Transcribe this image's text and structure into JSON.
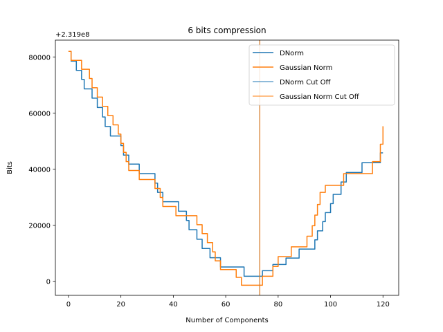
{
  "chart_data": {
    "type": "line",
    "title": "6 bits compression",
    "xlabel": "Number of Components",
    "ylabel": "Bits",
    "offset_label": "+2.319e8",
    "xlim": [
      -5,
      126
    ],
    "ylim": [
      -5000,
      86000
    ],
    "xticks": [
      0,
      20,
      40,
      60,
      80,
      100,
      120
    ],
    "yticks": [
      0,
      20000,
      40000,
      60000,
      80000
    ],
    "legend_position": "upper right",
    "series": [
      {
        "name": "DNorm",
        "color": "#1f77b4",
        "step": true,
        "x": [
          0,
          1,
          2,
          3,
          4,
          5,
          6,
          7,
          8,
          9,
          10,
          11,
          12,
          13,
          14,
          15,
          16,
          17,
          18,
          19,
          20,
          21,
          22,
          23,
          24,
          25,
          26,
          27,
          28,
          29,
          30,
          31,
          32,
          33,
          34,
          35,
          36,
          37,
          38,
          39,
          40,
          41,
          42,
          43,
          44,
          45,
          46,
          47,
          48,
          49,
          50,
          51,
          52,
          53,
          54,
          55,
          56,
          57,
          58,
          59,
          60,
          61,
          62,
          63,
          64,
          65,
          66,
          67,
          68,
          69,
          70,
          71,
          72,
          73,
          74,
          75,
          76,
          77,
          78,
          79,
          80,
          81,
          82,
          83,
          84,
          85,
          86,
          87,
          88,
          89,
          90,
          91,
          92,
          93,
          94,
          95,
          96,
          97,
          98,
          99,
          100,
          101,
          102,
          103,
          104,
          105,
          106,
          107,
          108,
          109,
          110,
          111,
          112,
          113,
          114,
          115,
          116,
          117,
          118,
          119,
          120
        ],
        "y": [
          82000,
          78500,
          78500,
          75200,
          75200,
          72000,
          68600,
          68600,
          68600,
          65300,
          65300,
          62000,
          62000,
          58600,
          55200,
          55200,
          51800,
          51800,
          51800,
          51800,
          48400,
          45000,
          45000,
          41800,
          41800,
          41800,
          41800,
          38400,
          38400,
          38400,
          38400,
          38400,
          38400,
          35000,
          31700,
          31700,
          28400,
          28400,
          28400,
          28400,
          28400,
          28400,
          25000,
          25000,
          25000,
          21700,
          18400,
          18400,
          18400,
          15000,
          15000,
          11700,
          11700,
          11700,
          8400,
          8400,
          8400,
          8400,
          5100,
          5100,
          5100,
          5100,
          5100,
          5100,
          5100,
          5100,
          5100,
          1800,
          1800,
          1800,
          1800,
          1800,
          1800,
          1800,
          3800,
          3800,
          3800,
          3800,
          6000,
          6000,
          6000,
          6000,
          6000,
          8300,
          8300,
          8300,
          8300,
          8300,
          11500,
          11500,
          11500,
          11500,
          11500,
          11500,
          14800,
          18000,
          18000,
          21300,
          24500,
          24500,
          27700,
          31000,
          31000,
          31000,
          35400,
          35400,
          38800,
          38800,
          38800,
          38800,
          38800,
          38800,
          42300,
          42300,
          42300,
          42300,
          42300,
          42300,
          42300,
          45800,
          45800
        ]
      },
      {
        "name": "Gaussian Norm",
        "color": "#ff7f0e",
        "step": true,
        "x": [
          0,
          1,
          2,
          3,
          4,
          5,
          6,
          7,
          8,
          9,
          10,
          11,
          12,
          13,
          14,
          15,
          16,
          17,
          18,
          19,
          20,
          21,
          22,
          23,
          24,
          25,
          26,
          27,
          28,
          29,
          30,
          31,
          32,
          33,
          34,
          35,
          36,
          37,
          38,
          39,
          40,
          41,
          42,
          43,
          44,
          45,
          46,
          47,
          48,
          49,
          50,
          51,
          52,
          53,
          54,
          55,
          56,
          57,
          58,
          59,
          60,
          61,
          62,
          63,
          64,
          65,
          66,
          67,
          68,
          69,
          70,
          71,
          72,
          73,
          74,
          75,
          76,
          77,
          78,
          79,
          80,
          81,
          82,
          83,
          84,
          85,
          86,
          87,
          88,
          89,
          90,
          91,
          92,
          93,
          94,
          95,
          96,
          97,
          98,
          99,
          100,
          101,
          102,
          103,
          104,
          105,
          106,
          107,
          108,
          109,
          110,
          111,
          112,
          113,
          114,
          115,
          116,
          117,
          118,
          119,
          120
        ],
        "y": [
          82000,
          78800,
          78800,
          78800,
          78800,
          75600,
          75600,
          75600,
          72300,
          69000,
          69000,
          65700,
          65700,
          62400,
          62400,
          59100,
          59100,
          55800,
          55800,
          52500,
          49200,
          46000,
          42700,
          39500,
          39500,
          39500,
          39500,
          36300,
          36300,
          36300,
          36300,
          36300,
          36300,
          33100,
          33100,
          29900,
          26700,
          26700,
          26700,
          26700,
          26700,
          23400,
          23400,
          23400,
          23400,
          23400,
          23400,
          23400,
          23400,
          20200,
          20200,
          17000,
          17000,
          13800,
          13800,
          10500,
          7300,
          7300,
          4200,
          4200,
          4200,
          4200,
          4200,
          4200,
          1400,
          1400,
          -1400,
          -1400,
          -1400,
          -1400,
          -1400,
          -1400,
          -1400,
          -1400,
          1800,
          1800,
          1800,
          1800,
          5300,
          5300,
          8800,
          8800,
          8800,
          8800,
          8800,
          12300,
          12300,
          12300,
          12300,
          12300,
          12300,
          16100,
          16100,
          19800,
          23600,
          27400,
          31700,
          31700,
          34200,
          34200,
          34200,
          34200,
          34200,
          34200,
          34200,
          38400,
          38400,
          38400,
          38400,
          38400,
          38400,
          38400,
          38400,
          38400,
          38400,
          38400,
          42700,
          42700,
          42700,
          48900,
          55300
        ]
      },
      {
        "name": "DNorm Cut Off",
        "color": "#1f77b4",
        "vertical_x": 73
      },
      {
        "name": "Gaussian Norm Cut Off",
        "color": "#ff7f0e",
        "vertical_x": 73
      }
    ]
  }
}
